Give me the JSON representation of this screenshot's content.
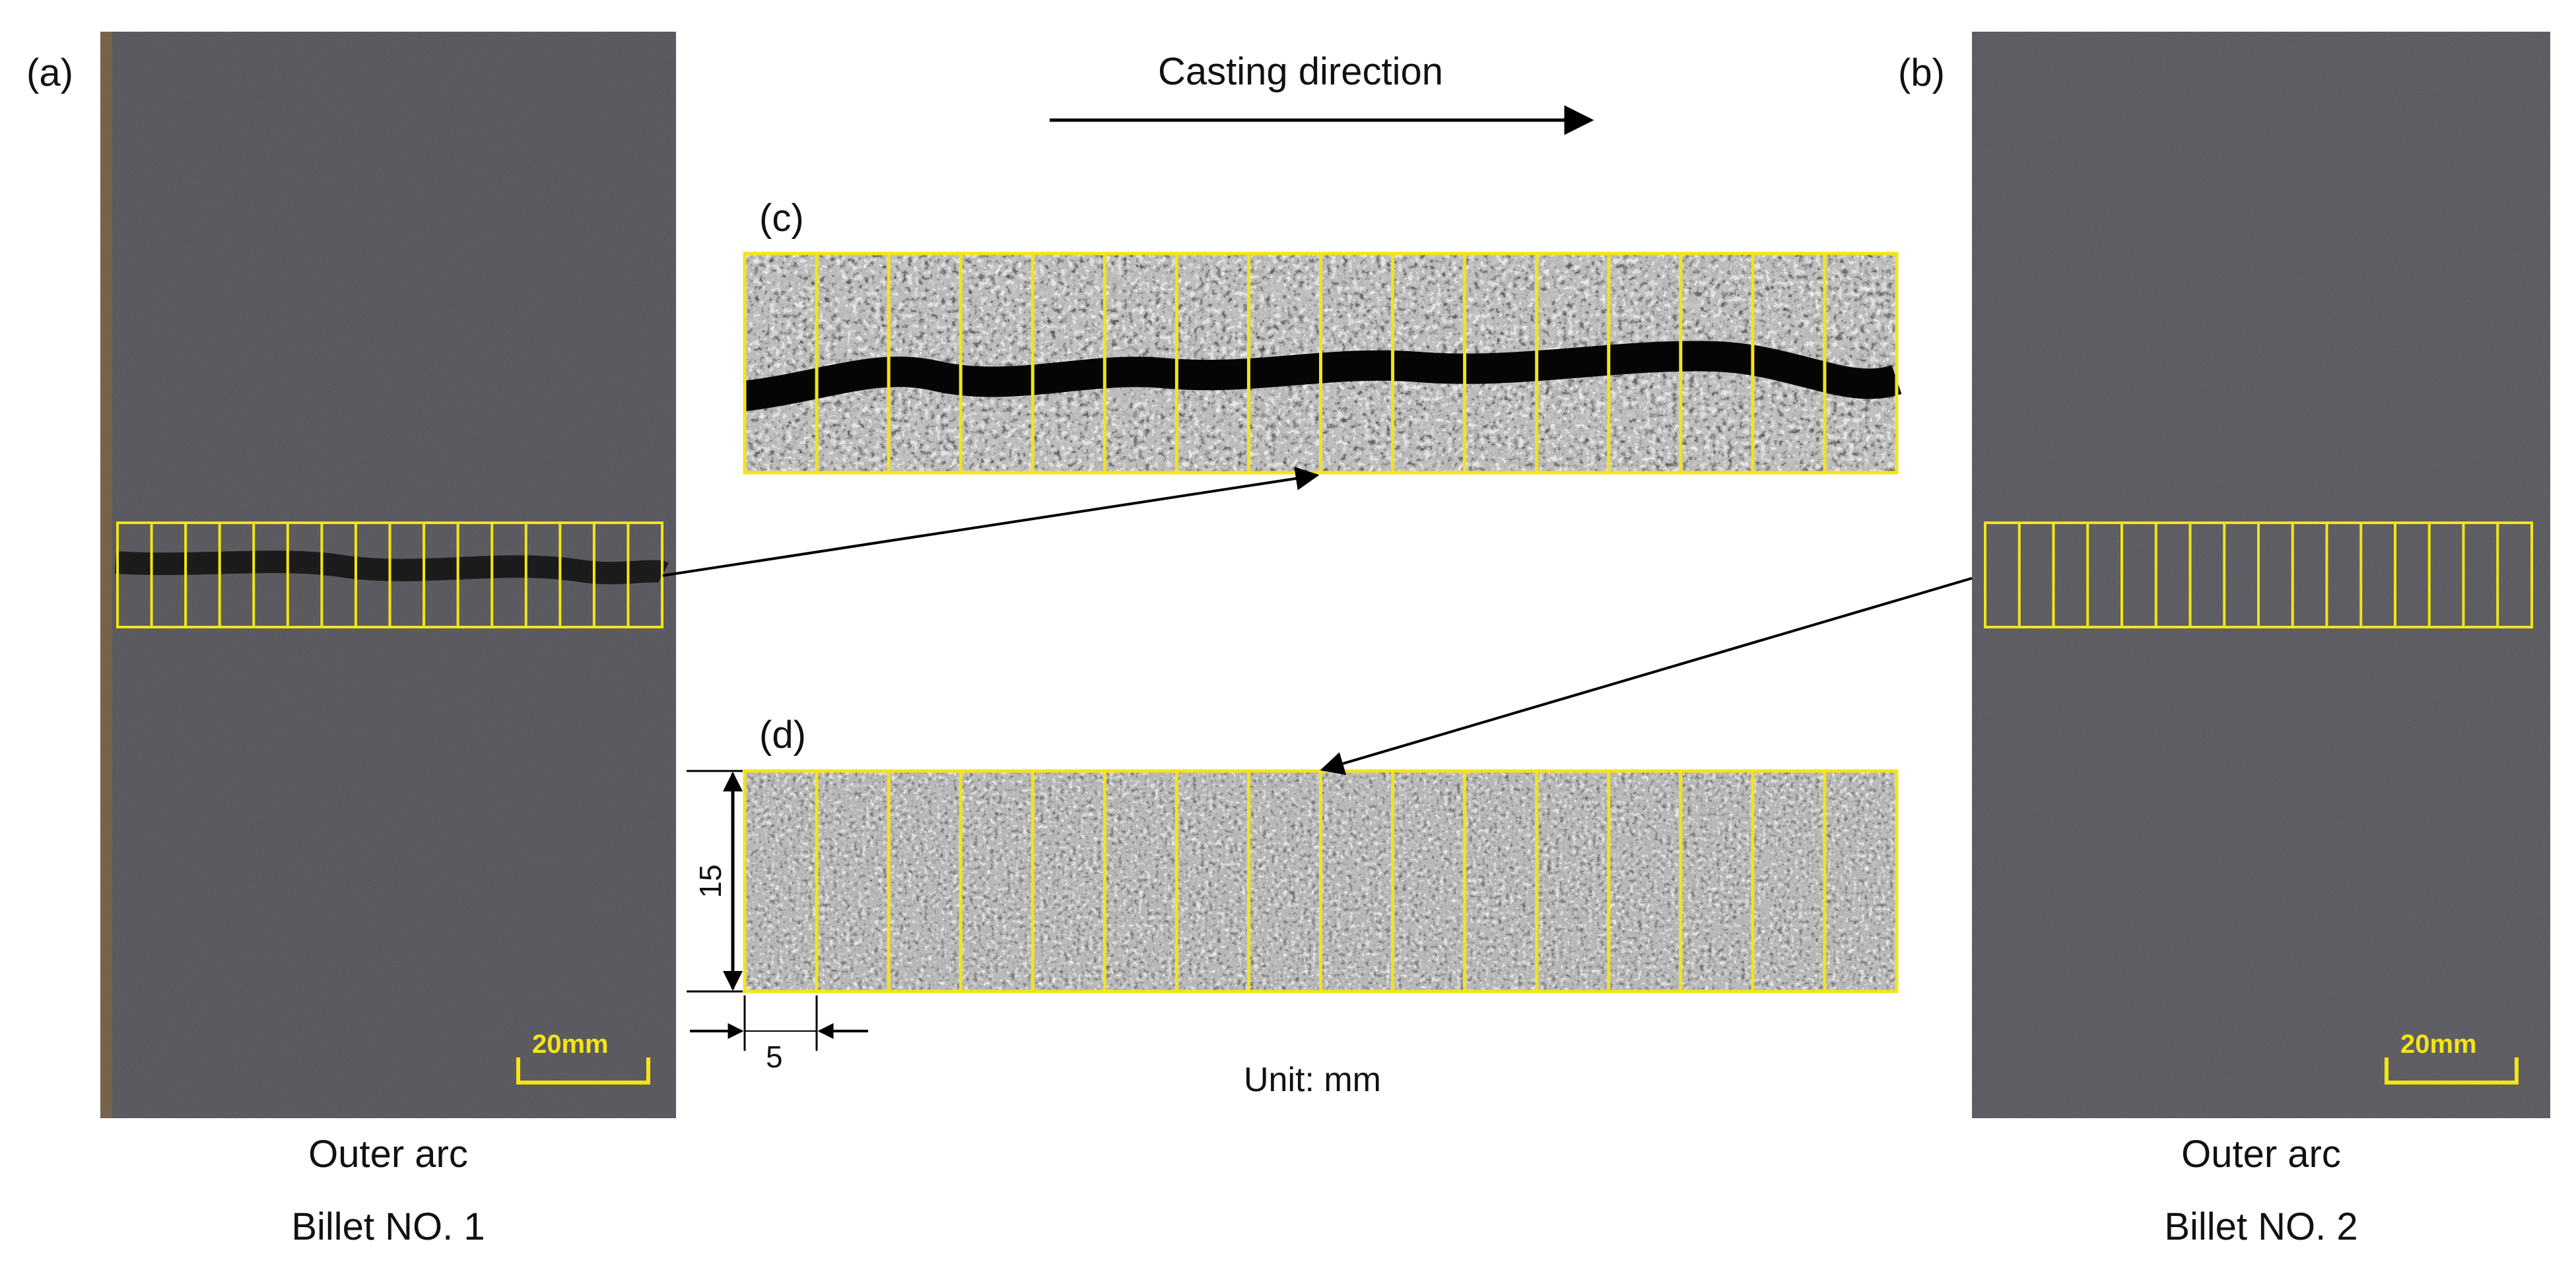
{
  "panels": {
    "a": {
      "label": "(a)",
      "caption_top": "Outer arc",
      "caption_bottom": "Billet NO. 1",
      "scale_bar": "20mm"
    },
    "b": {
      "label": "(b)",
      "caption_top": "Outer arc",
      "caption_bottom": "Billet NO. 2",
      "scale_bar": "20mm"
    },
    "c": {
      "label": "(c)"
    },
    "d": {
      "label": "(d)"
    }
  },
  "annotations": {
    "casting_direction": "Casting direction",
    "unit": "Unit: mm",
    "height_dim": "15",
    "width_dim": "5"
  },
  "colors": {
    "grid_outline": "#f4e416",
    "billet_surface": "#5f5d62",
    "macro_light": "#e6e6e6",
    "macro_dark": "#101010"
  },
  "icons": [
    "arrow-right-icon",
    "dimension-arrow-icon"
  ]
}
